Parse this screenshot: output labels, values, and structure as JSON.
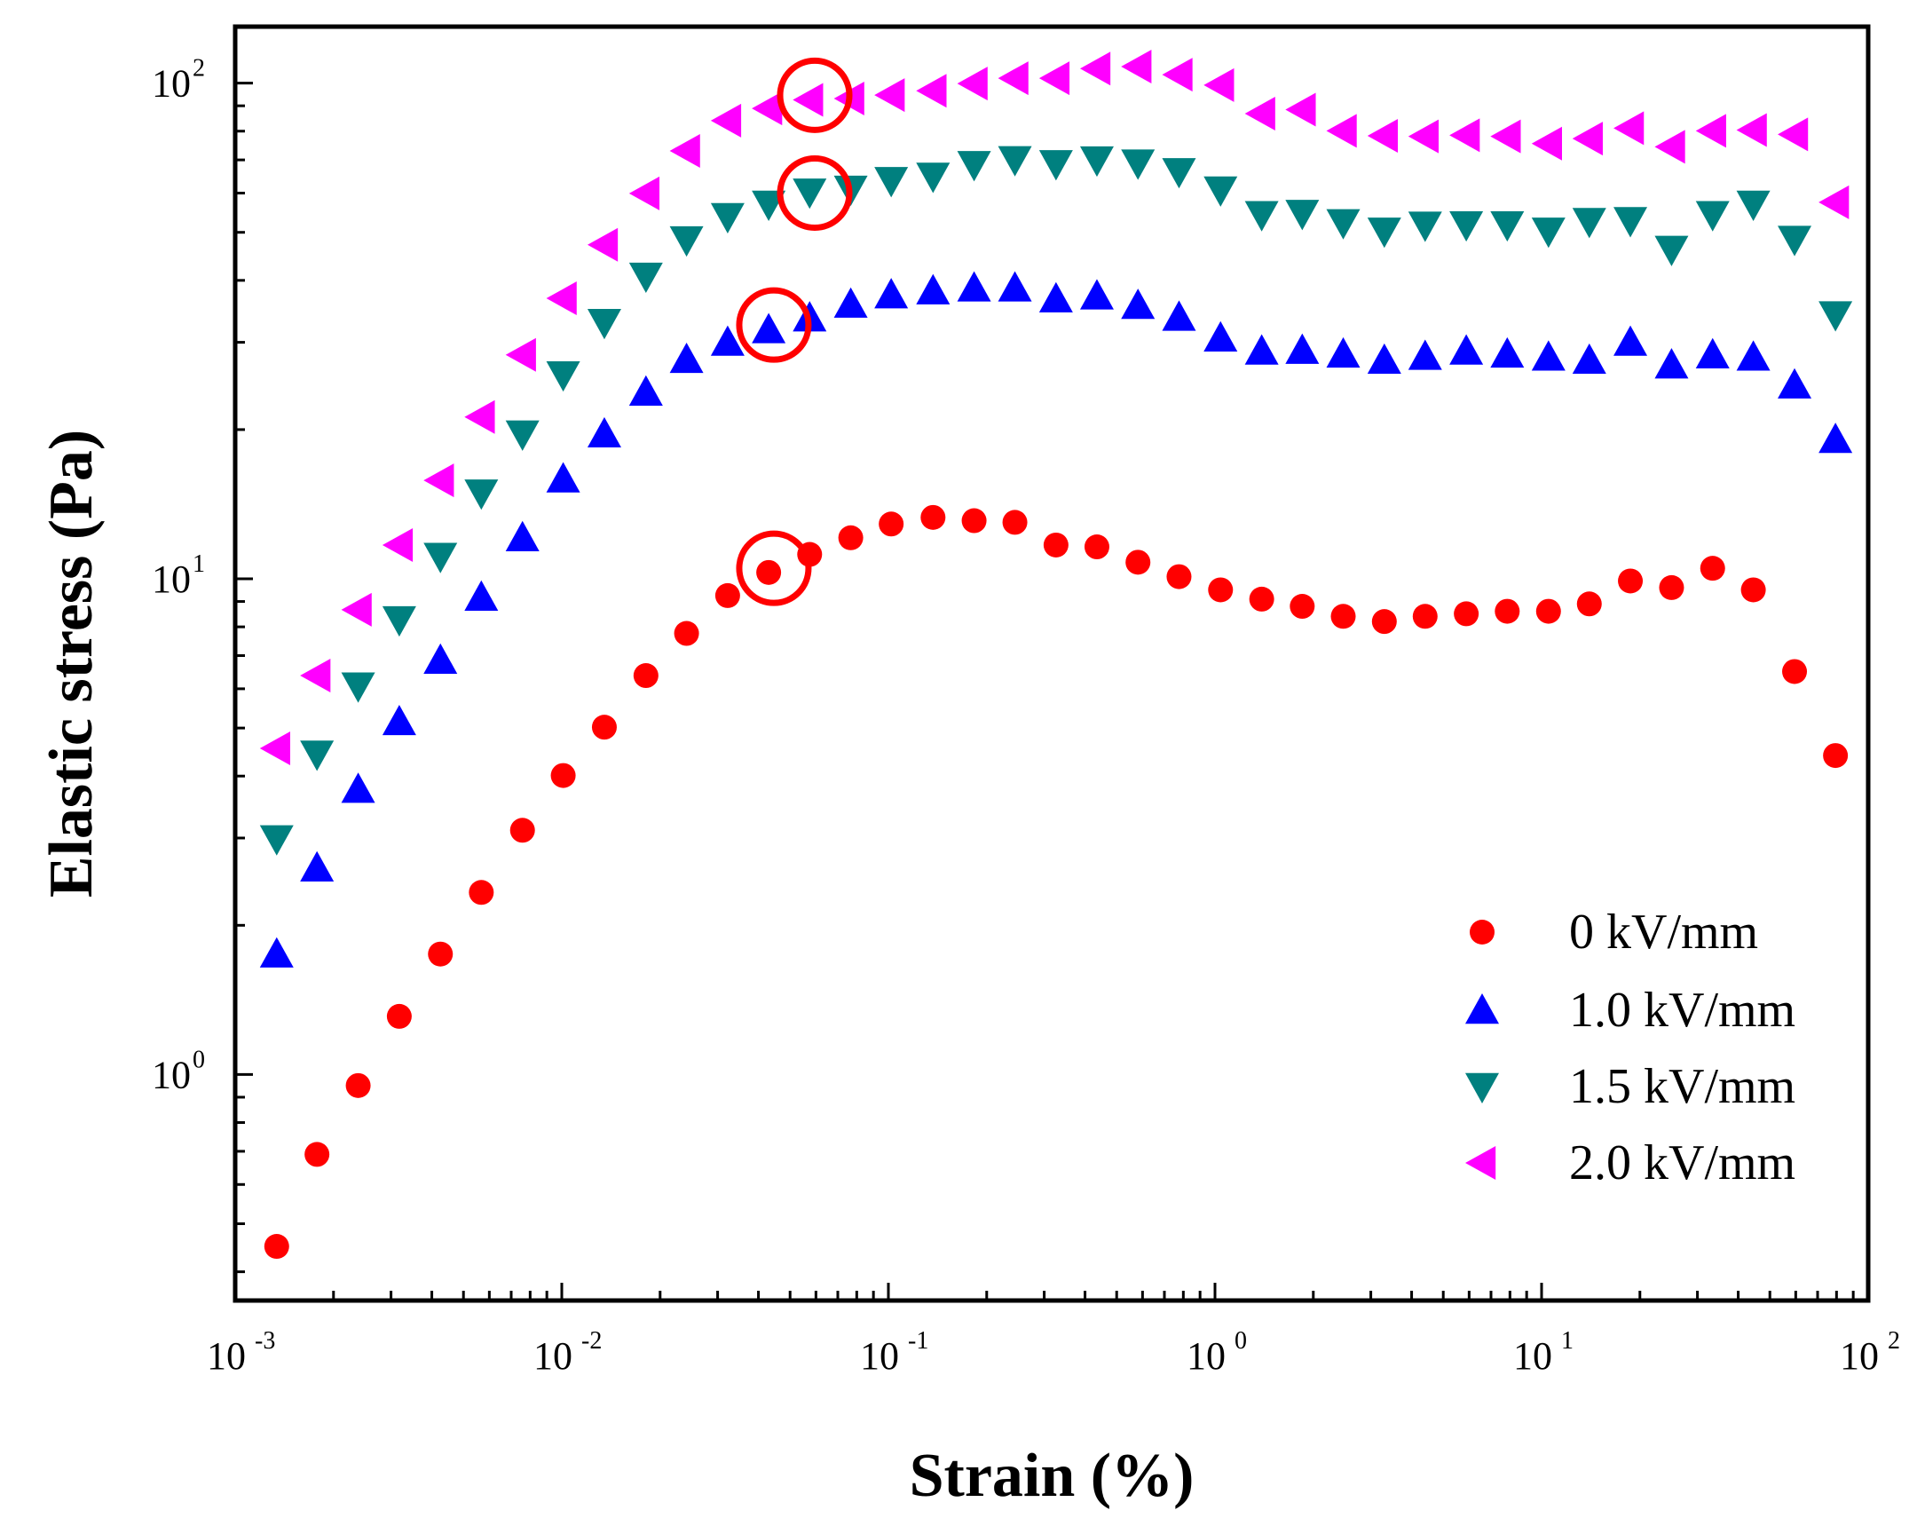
{
  "chart_data": {
    "type": "scatter",
    "title": "",
    "xlabel": "Strain (%)",
    "ylabel": "Elastic stress (Pa)",
    "xscale": "log",
    "yscale": "log",
    "xlim": [
      0.001,
      100
    ],
    "ylim": [
      0.35,
      130
    ],
    "x_ticks": [
      {
        "value": 0.001,
        "base": "10",
        "exp": "-3"
      },
      {
        "value": 0.01,
        "base": "10",
        "exp": "-2"
      },
      {
        "value": 0.1,
        "base": "10",
        "exp": "-1"
      },
      {
        "value": 1,
        "base": "10",
        "exp": "0"
      },
      {
        "value": 10,
        "base": "10",
        "exp": "1"
      },
      {
        "value": 100,
        "base": "10",
        "exp": "2"
      }
    ],
    "y_ticks": [
      {
        "value": 1,
        "base": "10",
        "exp": "0"
      },
      {
        "value": 10,
        "base": "10",
        "exp": "1"
      },
      {
        "value": 100,
        "base": "10",
        "exp": "2"
      }
    ],
    "legend_position": "bottom-right",
    "x": [
      0.00134,
      0.00178,
      0.00238,
      0.00318,
      0.00425,
      0.00567,
      0.00758,
      0.0101,
      0.0135,
      0.0181,
      0.0241,
      0.0322,
      0.043,
      0.0574,
      0.0767,
      0.102,
      0.137,
      0.183,
      0.244,
      0.326,
      0.435,
      0.581,
      0.776,
      1.04,
      1.39,
      1.85,
      2.47,
      3.3,
      4.4,
      5.88,
      7.85,
      10.5,
      14.0,
      18.7,
      25.0,
      33.4,
      44.5,
      59.5,
      79.4
    ],
    "series": [
      {
        "name": "0 kV/mm",
        "marker": "circle",
        "color": "#ff0000",
        "values": [
          0.45,
          0.69,
          0.95,
          1.31,
          1.75,
          2.33,
          3.11,
          4.01,
          5.02,
          6.38,
          7.76,
          9.25,
          10.3,
          11.2,
          12.1,
          12.9,
          13.3,
          13.1,
          13.0,
          11.7,
          11.6,
          10.8,
          10.1,
          9.5,
          9.1,
          8.8,
          8.4,
          8.2,
          8.4,
          8.5,
          8.6,
          8.6,
          8.9,
          9.9,
          9.6,
          10.5,
          9.5,
          6.5,
          4.4
        ]
      },
      {
        "name": "1.0 kV/mm",
        "marker": "triangle-up",
        "color": "#0000ff",
        "values": [
          1.75,
          2.61,
          3.76,
          5.15,
          6.85,
          9.18,
          12.1,
          15.9,
          19.6,
          23.8,
          27.7,
          30.0,
          31.8,
          33.6,
          35.8,
          37.4,
          38.1,
          38.6,
          38.6,
          36.7,
          37.2,
          35.6,
          33.7,
          30.6,
          28.8,
          28.9,
          28.4,
          27.6,
          28.1,
          28.8,
          28.4,
          28.0,
          27.6,
          30.0,
          27.0,
          28.3,
          28.0,
          24.6,
          19.1
        ]
      },
      {
        "name": "1.5 kV/mm",
        "marker": "triangle-down",
        "color": "#00807f",
        "values": [
          2.99,
          4.43,
          6.08,
          8.27,
          11.1,
          14.9,
          19.6,
          25.8,
          32.9,
          40.8,
          48.3,
          53.8,
          57.0,
          60.3,
          61.1,
          63.6,
          64.9,
          68.5,
          70.1,
          68.8,
          70.0,
          69.0,
          66.3,
          60.9,
          54.3,
          54.6,
          52.3,
          50.3,
          51.7,
          51.8,
          51.8,
          50.3,
          52.6,
          52.8,
          46.2,
          54.3,
          57.0,
          48.4,
          34.1
        ]
      },
      {
        "name": "2.0 kV/mm",
        "marker": "triangle-left",
        "color": "#ff00ff",
        "values": [
          4.55,
          6.38,
          8.66,
          11.7,
          15.8,
          21.2,
          28.3,
          36.8,
          47.2,
          59.9,
          73.0,
          84.0,
          88.9,
          92.5,
          93.1,
          94.6,
          96.5,
          99.8,
          102.3,
          102.3,
          107.0,
          108.0,
          104.0,
          99.1,
          86.8,
          88.4,
          80.1,
          78.3,
          78.1,
          78.5,
          78.1,
          75.5,
          77.3,
          81.1,
          74.4,
          80.1,
          80.4,
          78.8,
          57.5
        ]
      }
    ],
    "annotations": [
      {
        "type": "circle",
        "series": "2.0 kV/mm",
        "x": 0.0595,
        "y": 94.5
      },
      {
        "type": "circle",
        "series": "1.5 kV/mm",
        "x": 0.0595,
        "y": 60.0
      },
      {
        "type": "circle",
        "series": "1.0 kV/mm",
        "x": 0.0446,
        "y": 32.5
      },
      {
        "type": "circle",
        "series": "0 kV/mm",
        "x": 0.0446,
        "y": 10.5
      }
    ],
    "annotation_color": "#ff0000"
  }
}
